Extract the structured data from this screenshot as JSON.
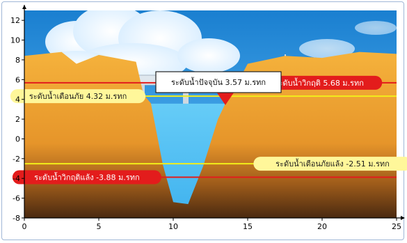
{
  "chart_data": {
    "type": "line",
    "xlim": [
      0,
      25
    ],
    "ylim": [
      -8,
      13
    ],
    "x_ticks": [
      "0",
      "5",
      "10",
      "15",
      "20",
      "25"
    ],
    "y_ticks": [
      "12",
      "10",
      "8",
      "6",
      "4",
      "2",
      "0",
      "-2",
      "-4",
      "-6",
      "-8"
    ],
    "grid": false,
    "colors": {
      "critical": "#e31c1c",
      "warning": "#f2ee1a",
      "bank": "#f0a830",
      "water": "#5ec8f5",
      "sky": "#1f8fd6"
    },
    "current_level": {
      "label": "ระดับน้ำปัจจุบัน 3.57 ม.รทก",
      "value": 3.57,
      "x": 13.5
    },
    "reference_lines": [
      {
        "name": "flood_critical",
        "label": "ระดับน้ำวิกฤติ 5.68 ม.รทก",
        "value": 5.68,
        "label_x": 19.8,
        "line_color": "#e31c1c",
        "label_bg": "#e31c1c",
        "label_color": "#ffffff"
      },
      {
        "name": "flood_warning",
        "label": "ระดับน้ำเตือนภัย 4.32 ม.รทก",
        "value": 4.32,
        "label_x": 3.6,
        "line_color": "#f2ee1a",
        "label_bg": "#fff79a",
        "label_color": "#1a1a1a"
      },
      {
        "name": "drought_warning",
        "label": "ระดับน้ำเตือนภัยแล้ง -2.51 ม.รทก",
        "value": -2.51,
        "label_x": 20.7,
        "line_color": "#f2ee1a",
        "label_bg": "#fff79a",
        "label_color": "#1a1a1a"
      },
      {
        "name": "drought_critical",
        "label": "ระดับน้ำวิกฤติแล้ง -3.88 ม.รทก",
        "value": -3.88,
        "label_x": 4.2,
        "line_color": "#e31c1c",
        "label_bg": "#e31c1c",
        "label_color": "#ffffff"
      }
    ],
    "cross_section": [
      [
        0,
        8.4
      ],
      [
        2.5,
        8.8
      ],
      [
        3.5,
        7.6
      ],
      [
        5,
        8.5
      ],
      [
        7.5,
        7.8
      ],
      [
        8,
        4.5
      ],
      [
        8.5,
        3.6
      ],
      [
        9.3,
        -2.6
      ],
      [
        10,
        -6.4
      ],
      [
        11,
        -6.6
      ],
      [
        12,
        -2.8
      ],
      [
        13,
        2.0
      ],
      [
        13.5,
        3.57
      ],
      [
        14,
        4.8
      ],
      [
        15,
        7.6
      ],
      [
        17.5,
        8.4
      ],
      [
        20,
        8.2
      ],
      [
        22.5,
        8.8
      ],
      [
        25,
        8.6
      ]
    ]
  }
}
